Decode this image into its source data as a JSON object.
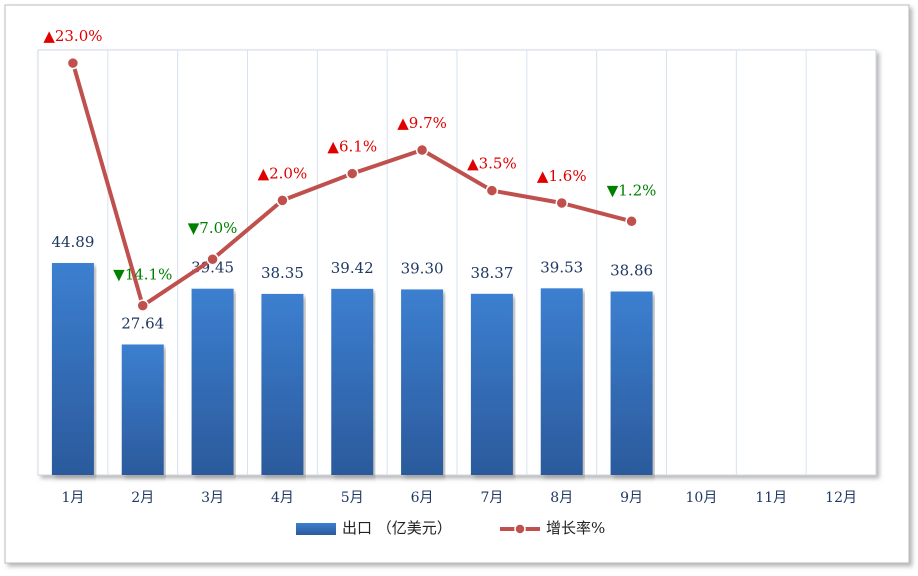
{
  "chart_data": {
    "type": "bar-line",
    "categories": [
      "1月",
      "2月",
      "3月",
      "4月",
      "5月",
      "6月",
      "7月",
      "8月",
      "9月",
      "10月",
      "11月",
      "12月"
    ],
    "series": [
      {
        "name": "出口 （亿美元）",
        "type": "bar",
        "color": "#3570bf",
        "values": [
          44.89,
          27.64,
          39.45,
          38.35,
          39.42,
          39.3,
          38.37,
          39.53,
          38.86,
          null,
          null,
          null
        ],
        "value_labels": [
          "44.89",
          "27.64",
          "39.45",
          "38.35",
          "39.42",
          "39.30",
          "38.37",
          "39.53",
          "38.86",
          null,
          null,
          null
        ]
      },
      {
        "name": "增长率%",
        "type": "line",
        "axis": "y2",
        "color": "#c0504d",
        "values": [
          23.0,
          -14.1,
          -7.0,
          2.0,
          6.1,
          9.7,
          3.5,
          1.6,
          -1.2,
          null,
          null,
          null
        ],
        "value_labels": [
          "▲23.0%",
          "▼14.1%",
          "▼7.0%",
          "▲2.0%",
          "▲6.1%",
          "▲9.7%",
          "▲3.5%",
          "▲1.6%",
          "▼1.2%",
          null,
          null,
          null
        ]
      }
    ],
    "ylim": [
      0,
      90
    ],
    "y2lim": [
      -40,
      25
    ],
    "grid": true,
    "legend": "bottom",
    "up_color": "#e00000",
    "down_color": "#008000"
  }
}
